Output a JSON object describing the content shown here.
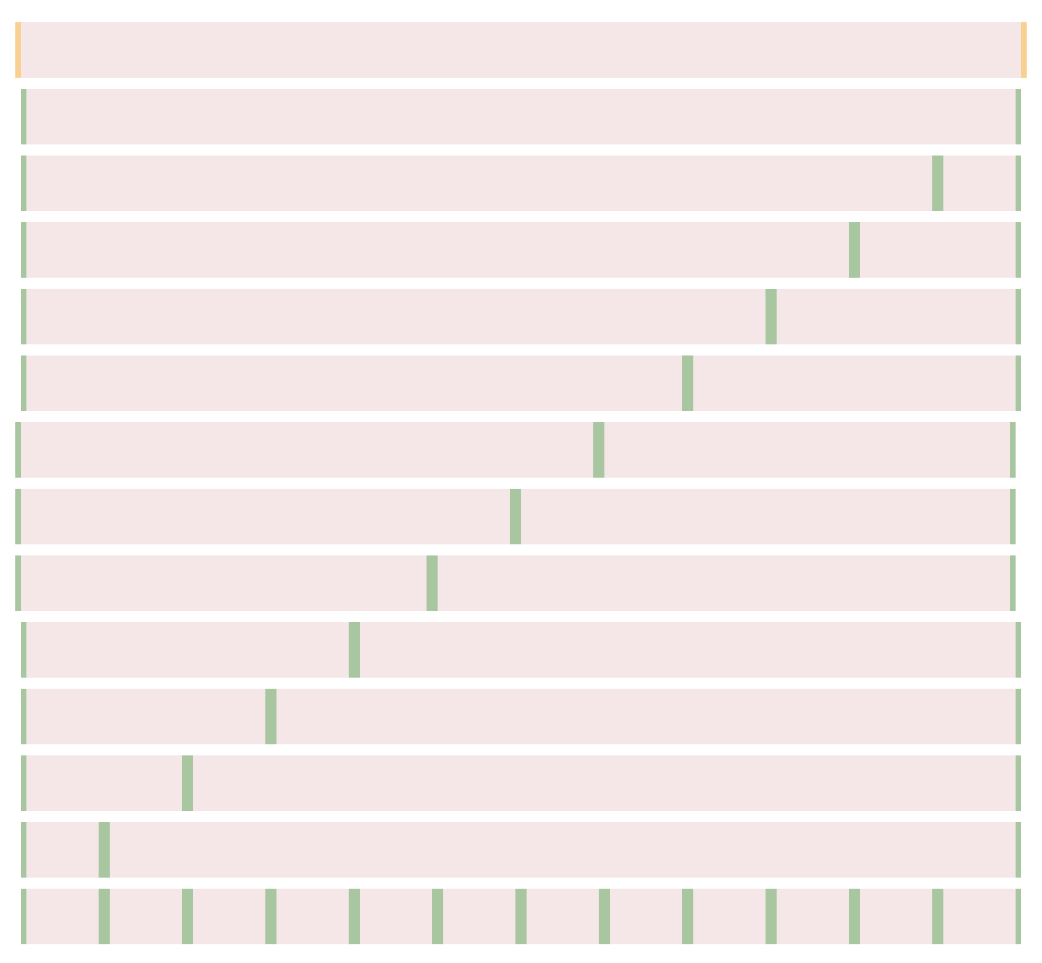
{
  "colors": {
    "background": "#ffffff",
    "row_fill": "#f5e6e8",
    "divider_primary": "#a8c69f",
    "divider_accent": "#f8d092"
  },
  "bars": [
    {
      "kind": "accent",
      "cuts": []
    },
    {
      "kind": "primary",
      "cuts": []
    },
    {
      "kind": "primary",
      "cuts": [
        11
      ]
    },
    {
      "kind": "primary",
      "cuts": [
        10
      ]
    },
    {
      "kind": "primary",
      "cuts": [
        9
      ]
    },
    {
      "kind": "primary",
      "cuts": [
        8
      ]
    },
    {
      "kind": "primary",
      "cuts": [
        7
      ]
    },
    {
      "kind": "primary",
      "cuts": [
        6
      ]
    },
    {
      "kind": "primary",
      "cuts": [
        5
      ]
    },
    {
      "kind": "primary",
      "cuts": [
        4
      ]
    },
    {
      "kind": "primary",
      "cuts": [
        3
      ]
    },
    {
      "kind": "primary",
      "cuts": [
        2
      ]
    },
    {
      "kind": "primary",
      "cuts": [
        1
      ]
    },
    {
      "kind": "primary",
      "cuts": [
        1,
        2,
        3,
        4,
        5,
        6,
        7,
        8,
        9,
        10,
        11
      ]
    }
  ],
  "segments_per_bar": 12
}
